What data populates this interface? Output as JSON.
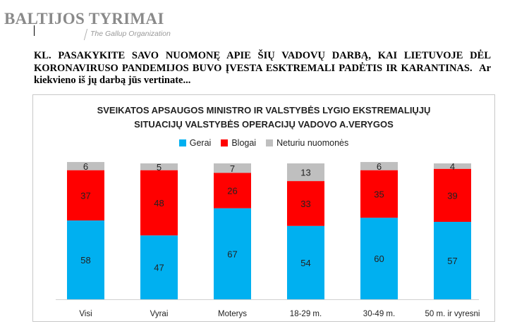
{
  "header": {
    "brand": "BALTIJOS TYRIMAI",
    "brand_subtitle": "The Gallup Organization"
  },
  "question": {
    "main": "KL. PASAKYKITE SAVO NUOMONĘ APIE ŠIŲ VADOVŲ DARBĄ, KAI LIETUVOJE DĖL KORONAVIRUSO PANDEMIJOS BUVO ĮVESTA ESKTREMALI PADĖTIS IR KARANTINAS.",
    "sub": "Ar kiekvieno iš jų darbą jūs vertinate..."
  },
  "chart_data": {
    "type": "bar",
    "stacked": true,
    "title_line1": "SVEIKATOS APSAUGOS MINISTRO IR VALSTYBĖS LYGIO EKSTREMALIŲJŲ",
    "title_line2": "SITUACIJŲ VALSTYBĖS OPERACIJŲ VADOVO A.VERYGOS",
    "categories": [
      "Visi",
      "Vyrai",
      "Moterys",
      "18-29 m.",
      "30-49 m.",
      "50 m. ir vyresni"
    ],
    "series": [
      {
        "name": "Gerai",
        "color": "#00b0f0",
        "values": [
          58,
          47,
          67,
          54,
          60,
          57
        ]
      },
      {
        "name": "Blogai",
        "color": "#ff0000",
        "values": [
          37,
          48,
          26,
          33,
          35,
          39
        ]
      },
      {
        "name": "Neturiu nuomonės",
        "color": "#bfbfbf",
        "values": [
          6,
          5,
          7,
          13,
          6,
          4
        ]
      }
    ],
    "legend_position": "top-center",
    "grid": false,
    "ylim": [
      0,
      100
    ]
  }
}
